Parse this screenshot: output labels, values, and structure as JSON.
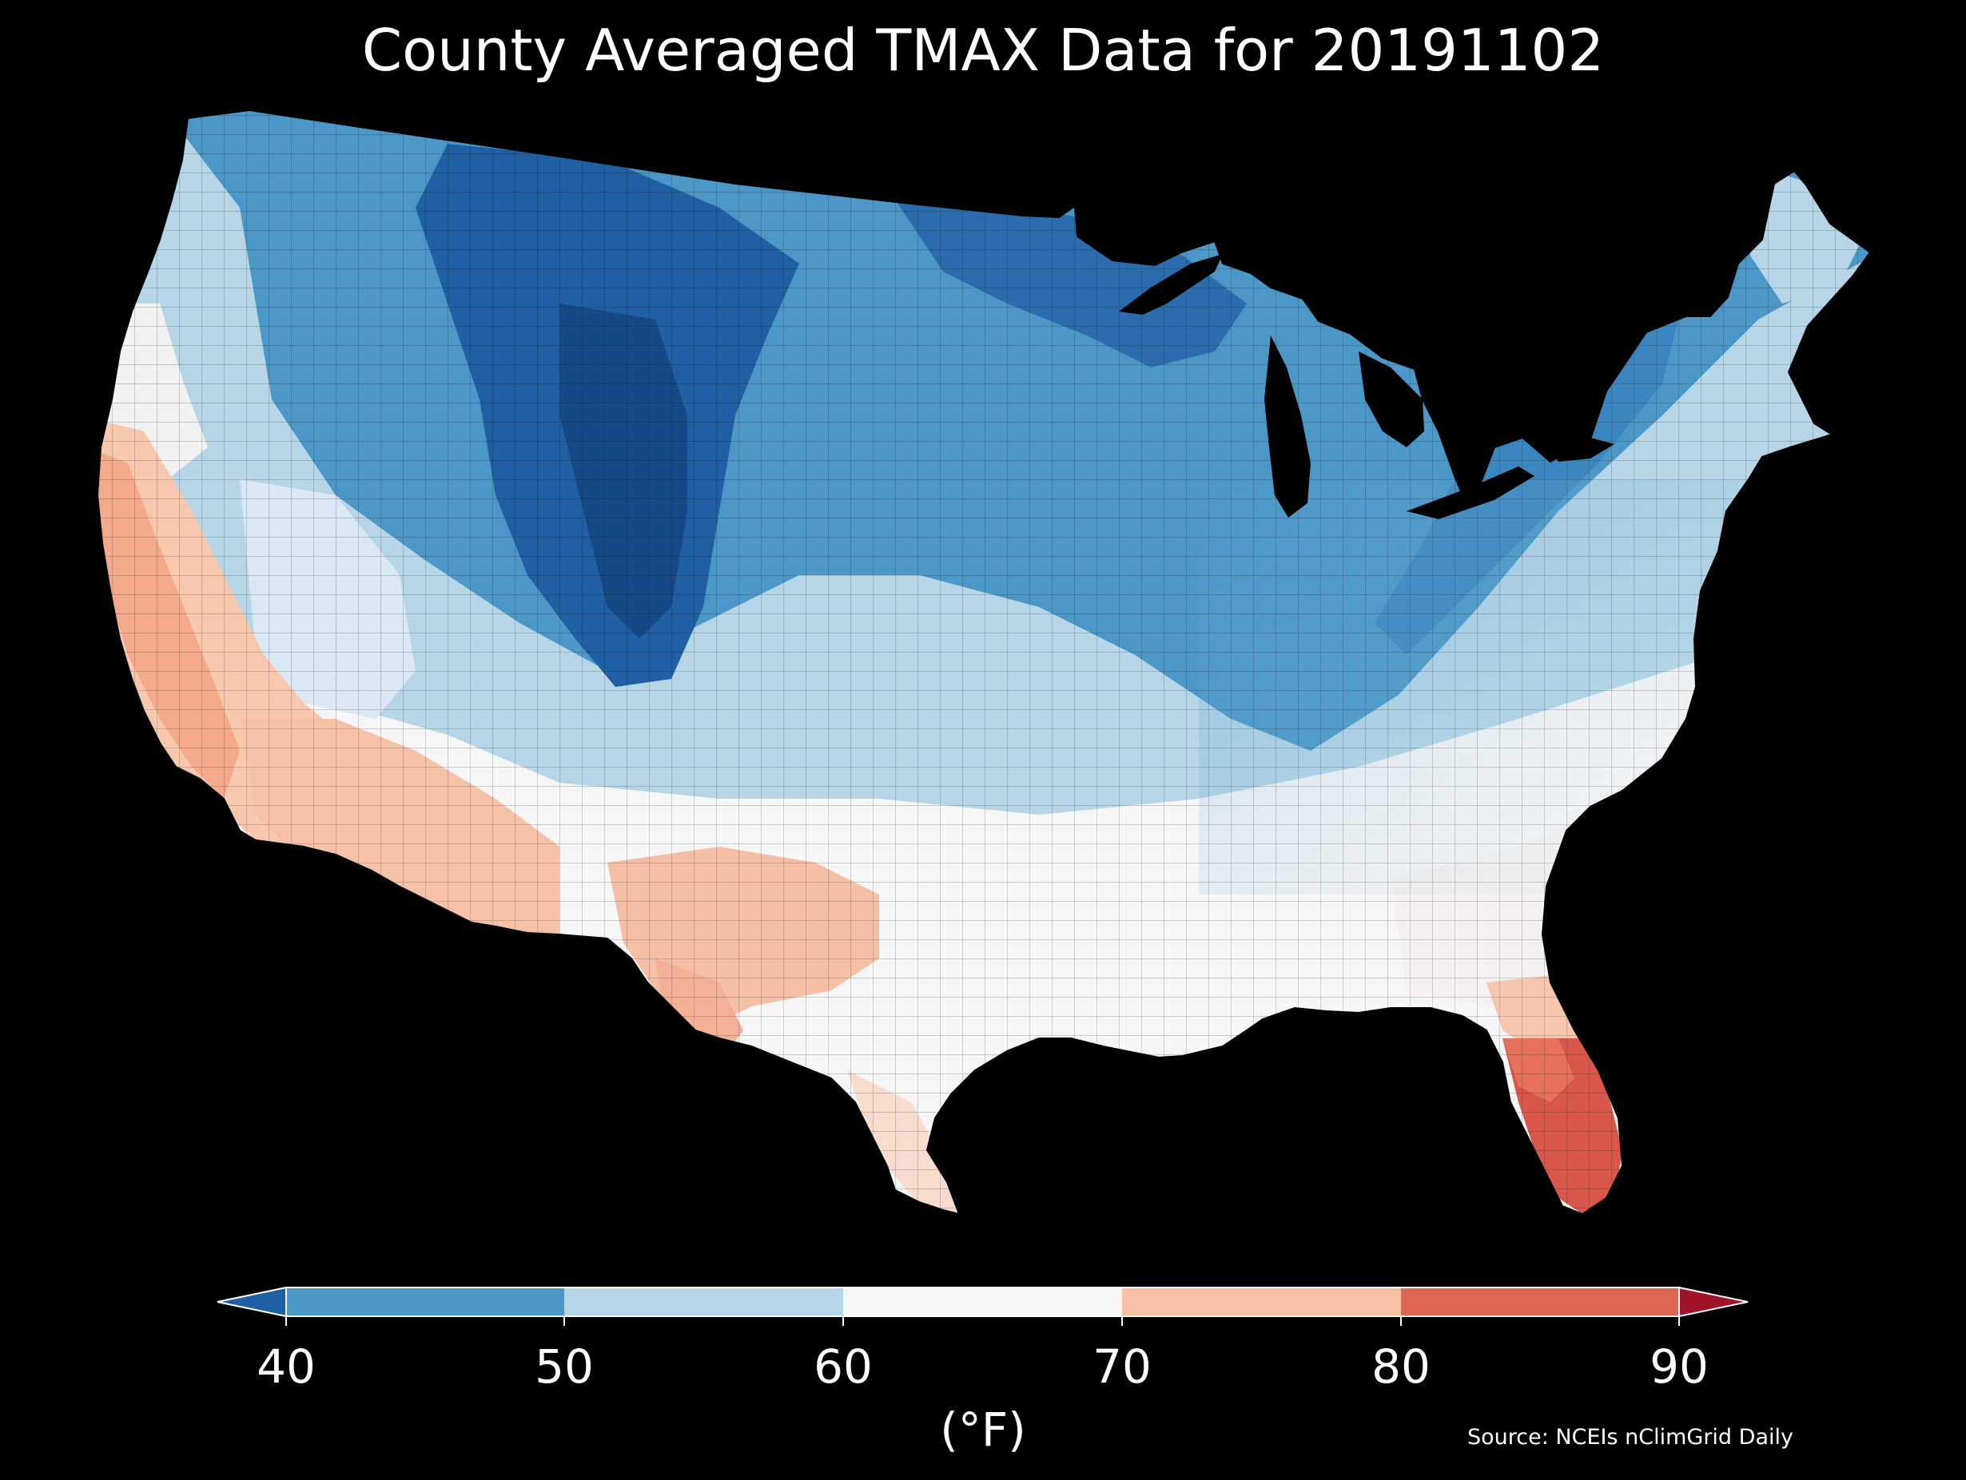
{
  "map": {
    "title": "County Averaged TMAX Data for 20191102",
    "region": "contiguous-united-states",
    "variable": "TMAX",
    "date": "20191102",
    "background_color": "#000000",
    "county_border_color": "#000000",
    "regional_pattern": [
      {
        "region": "northern-rockies-and-high-plains",
        "class": "below-40"
      },
      {
        "region": "upper-midwest-and-great-lakes",
        "class": "40-50"
      },
      {
        "region": "northeast-and-ohio-valley",
        "class": "40-50"
      },
      {
        "region": "pacific-northwest-and-great-basin",
        "class": "50-60"
      },
      {
        "region": "central-and-southern-plains",
        "class": "50-60"
      },
      {
        "region": "southeast-and-gulf-coast",
        "class": "60-70"
      },
      {
        "region": "california-coast-and-desert-southwest",
        "class": "70-80"
      },
      {
        "region": "west-texas-and-new-mexico",
        "class": "70-80"
      },
      {
        "region": "south-florida",
        "class": "80-90"
      }
    ]
  },
  "colorbar": {
    "ticks": [
      "40",
      "50",
      "60",
      "70",
      "80",
      "90"
    ],
    "unit_label": "(°F)",
    "extend": "both",
    "bins": [
      {
        "range": "below-40",
        "color": "#1f5fa3"
      },
      {
        "range": "40-50",
        "color": "#4a97c8"
      },
      {
        "range": "50-60",
        "color": "#b6d6e8"
      },
      {
        "range": "60-70",
        "color": "#f6f6f6"
      },
      {
        "range": "70-80",
        "color": "#f7bfa3"
      },
      {
        "range": "80-90",
        "color": "#dc6652"
      },
      {
        "range": "above-90",
        "color": "#a01329"
      }
    ]
  },
  "source_note": "Source: NCEIs nClimGrid Daily"
}
